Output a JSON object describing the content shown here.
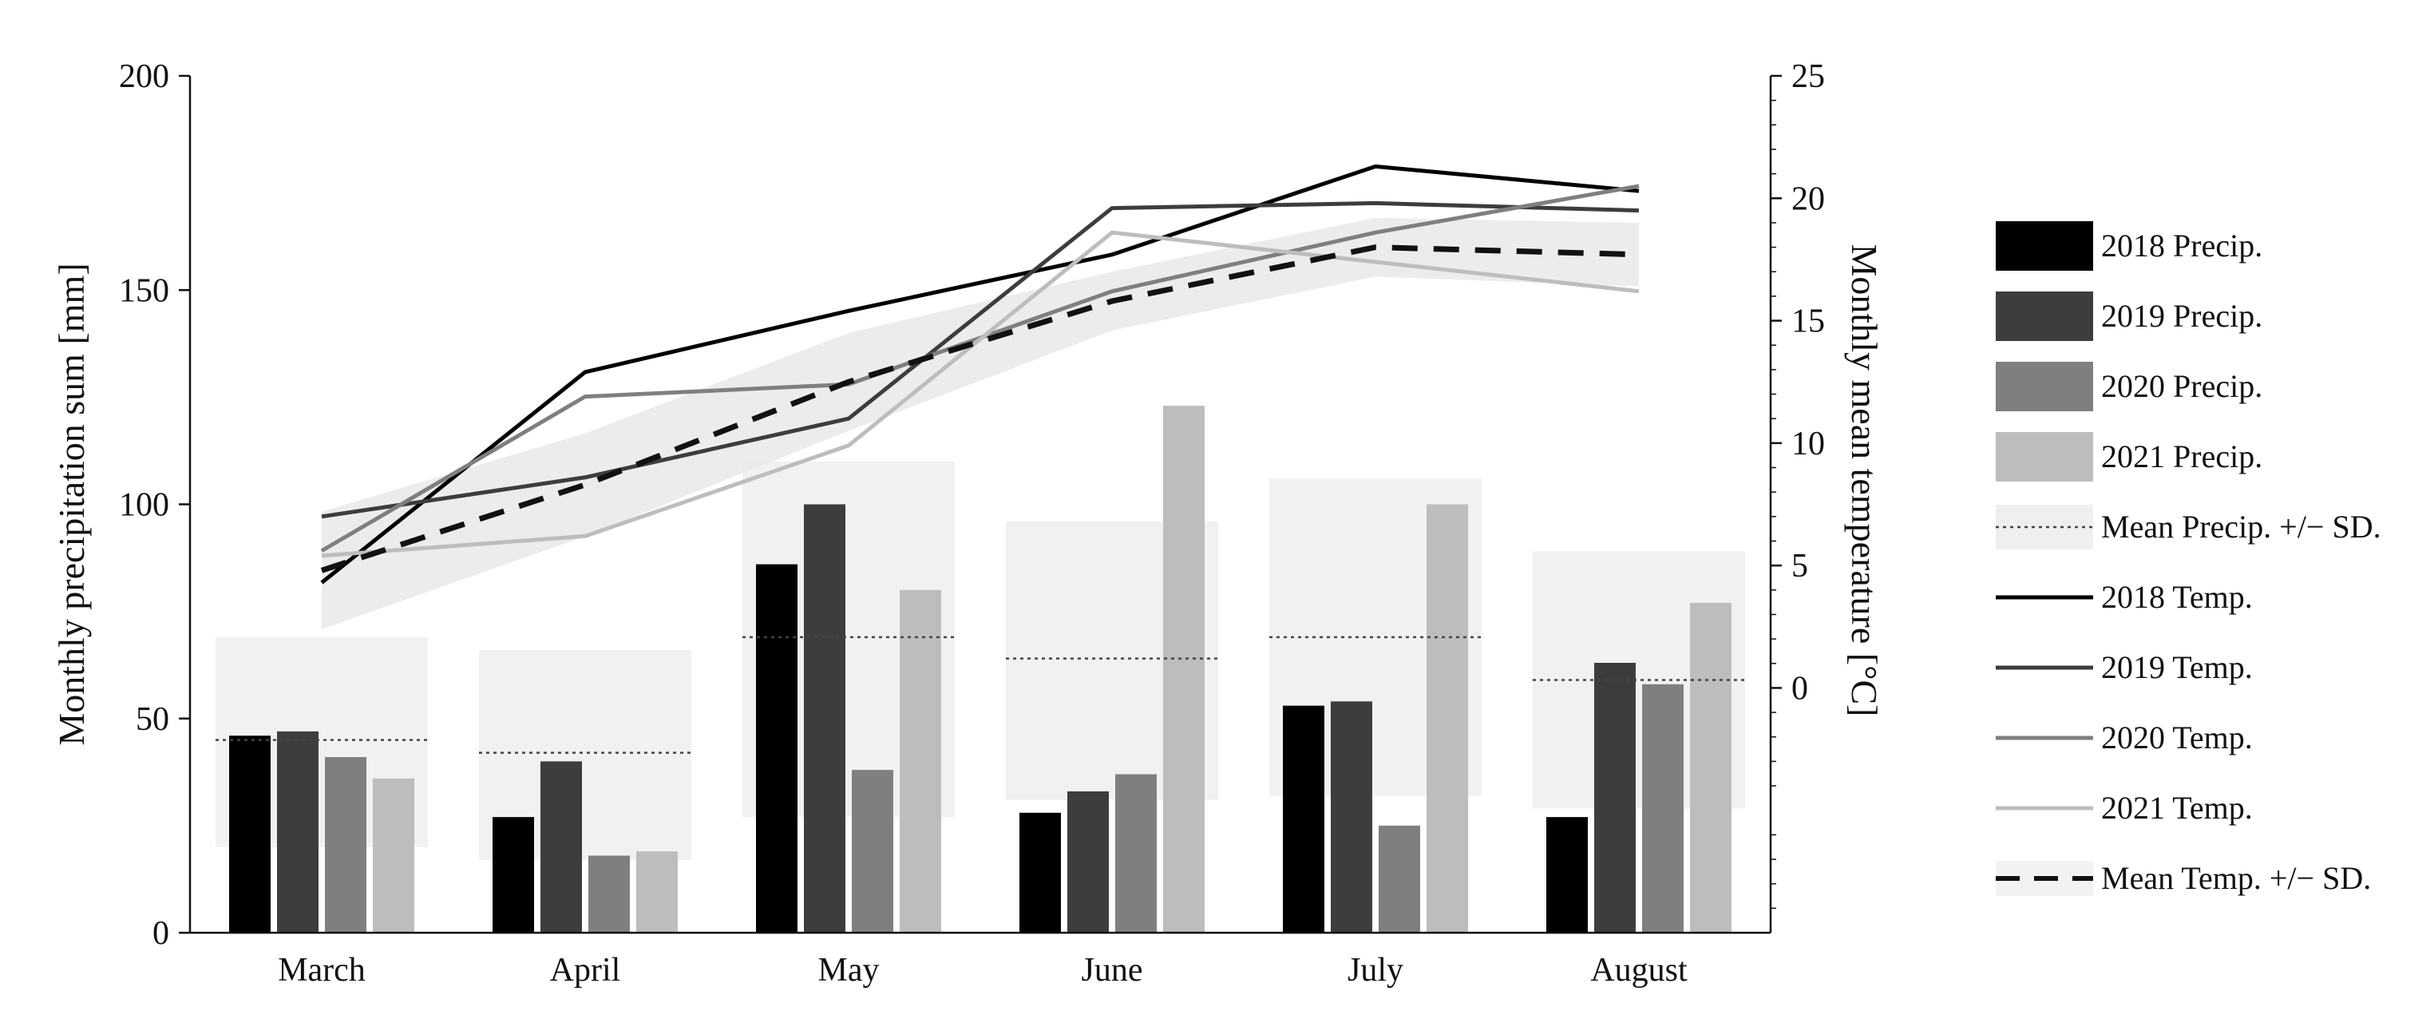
{
  "chart_data": {
    "type": "bar",
    "categories": [
      "March",
      "April",
      "May",
      "June",
      "July",
      "August"
    ],
    "ylabel": "Monthly precipitation sum [mm]",
    "ylabel_right": "Monthly mean temperature [°C]",
    "ylim": [
      0,
      200
    ],
    "ylim_right": [
      -10,
      25
    ],
    "yticks": [
      0,
      50,
      100,
      150,
      200
    ],
    "yticks_right": [
      0,
      5,
      10,
      15,
      20,
      25
    ],
    "precip_series": [
      {
        "name": "2018 Precip.",
        "color": "#000000",
        "values": [
          46,
          27,
          86,
          28,
          53,
          27
        ]
      },
      {
        "name": "2019 Precip.",
        "color": "#3d3d3d",
        "values": [
          47,
          40,
          100,
          33,
          54,
          63
        ]
      },
      {
        "name": "2020 Precip.",
        "color": "#7f7f7f",
        "values": [
          41,
          18,
          38,
          37,
          25,
          58
        ]
      },
      {
        "name": "2021 Precip.",
        "color": "#bdbdbd",
        "values": [
          36,
          19,
          80,
          123,
          100,
          77
        ]
      }
    ],
    "precip_mean": {
      "name": "Mean Precip. +/− SD.",
      "mean": [
        45,
        42,
        69,
        64,
        69,
        59
      ],
      "lower": [
        20,
        17,
        27,
        31,
        32,
        29
      ],
      "upper": [
        69,
        66,
        110,
        96,
        106,
        89
      ]
    },
    "temp_series": [
      {
        "name": "2018 Temp.",
        "color": "#000000",
        "values": [
          4.3,
          12.9,
          15.4,
          17.7,
          21.3,
          20.3
        ]
      },
      {
        "name": "2019 Temp.",
        "color": "#3d3d3d",
        "values": [
          7.0,
          8.6,
          11.0,
          19.6,
          19.8,
          19.5
        ]
      },
      {
        "name": "2020 Temp.",
        "color": "#7f7f7f",
        "values": [
          5.6,
          11.9,
          12.4,
          16.2,
          18.6,
          20.5
        ]
      },
      {
        "name": "2021 Temp.",
        "color": "#bdbdbd",
        "values": [
          5.4,
          6.2,
          9.9,
          18.6,
          17.4,
          16.2
        ]
      }
    ],
    "temp_mean": {
      "name": "Mean Temp. +/− SD.",
      "mean": [
        4.8,
        8.3,
        12.5,
        15.8,
        18.0,
        17.7
      ],
      "lower": [
        2.4,
        6.2,
        10.5,
        14.6,
        16.8,
        16.4
      ],
      "upper": [
        7.2,
        10.4,
        14.5,
        17.0,
        19.2,
        19.0
      ]
    },
    "legend_position": "right",
    "grid": false
  }
}
